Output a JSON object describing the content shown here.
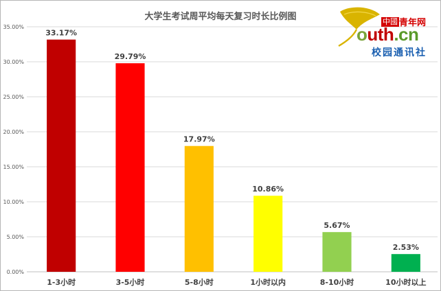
{
  "chart_data": {
    "type": "bar",
    "title": "大学生考试周平均每天复习时长比例图",
    "categories": [
      "1-3小时",
      "3-5小时",
      "5-8小时",
      "1小时以内",
      "8-10小时",
      "10小时以上"
    ],
    "values": [
      33.17,
      29.79,
      17.97,
      10.86,
      5.67,
      2.53
    ],
    "value_labels": [
      "33.17%",
      "29.79%",
      "17.97%",
      "10.86%",
      "5.67%",
      "2.53%"
    ],
    "bar_colors": [
      "#C00000",
      "#FF0000",
      "#FFC000",
      "#FFFF00",
      "#92D050",
      "#00B050"
    ],
    "ylim": [
      0,
      35
    ],
    "yticks": [
      0,
      5,
      10,
      15,
      20,
      25,
      30,
      35
    ],
    "ytick_labels": [
      "0.00%",
      "5.00%",
      "10.00%",
      "15.00%",
      "20.00%",
      "25.00%",
      "30.00%",
      "35.00%"
    ],
    "xlabel": "",
    "ylabel": "",
    "grid": true,
    "legend": "none"
  },
  "watermark": {
    "zhongguo": "中國",
    "qingnianwang": "青年网",
    "youth_o": "o",
    "youth_r": "uth",
    "youth_cn": ".cn",
    "subtitle": "校园通讯社"
  }
}
